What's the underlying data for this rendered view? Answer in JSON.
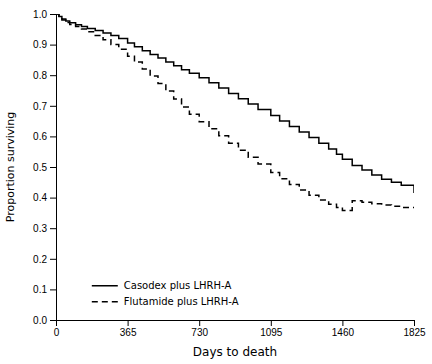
{
  "chart_data": {
    "type": "step",
    "xlabel": "Days to death",
    "ylabel": "Proportion surviving",
    "xlim": [
      0,
      1825
    ],
    "ylim": [
      0.0,
      1.0
    ],
    "xticks": [
      0,
      365,
      730,
      1095,
      1460,
      1825
    ],
    "yticks": [
      {
        "value": 0.0,
        "label": "0.0"
      },
      0.1,
      0.2,
      0.3,
      0.4,
      0.5,
      0.6,
      0.7,
      0.8,
      0.9,
      {
        "value": 1.0,
        "label": "1.0"
      }
    ],
    "x": [
      0,
      15,
      30,
      50,
      70,
      100,
      130,
      160,
      200,
      240,
      280,
      320,
      365,
      400,
      440,
      480,
      520,
      560,
      600,
      640,
      680,
      730,
      780,
      830,
      880,
      930,
      980,
      1030,
      1095,
      1140,
      1190,
      1240,
      1290,
      1340,
      1390,
      1430,
      1460,
      1510,
      1560,
      1610,
      1660,
      1710,
      1760,
      1825
    ],
    "series": [
      {
        "name": "Casodex plus LHRH-A",
        "color": "#000000",
        "line_style": "solid",
        "values": [
          1.0,
          0.992,
          0.984,
          0.977,
          0.971,
          0.965,
          0.959,
          0.953,
          0.946,
          0.938,
          0.93,
          0.92,
          0.905,
          0.893,
          0.88,
          0.868,
          0.856,
          0.843,
          0.831,
          0.818,
          0.806,
          0.792,
          0.775,
          0.758,
          0.74,
          0.723,
          0.706,
          0.688,
          0.668,
          0.65,
          0.632,
          0.614,
          0.596,
          0.578,
          0.559,
          0.542,
          0.525,
          0.505,
          0.49,
          0.474,
          0.46,
          0.45,
          0.44,
          0.415
        ]
      },
      {
        "name": "Flutamide plus LHRH-A",
        "color": "#000000",
        "line_style": "dashed",
        "values": [
          1.0,
          0.99,
          0.98,
          0.972,
          0.966,
          0.959,
          0.951,
          0.942,
          0.93,
          0.916,
          0.9,
          0.885,
          0.862,
          0.843,
          0.82,
          0.797,
          0.773,
          0.748,
          0.722,
          0.696,
          0.672,
          0.648,
          0.625,
          0.602,
          0.578,
          0.555,
          0.532,
          0.51,
          0.482,
          0.462,
          0.443,
          0.425,
          0.408,
          0.392,
          0.378,
          0.368,
          0.358,
          0.39,
          0.385,
          0.38,
          0.376,
          0.372,
          0.368,
          0.37
        ]
      }
    ],
    "legend": "lower left",
    "grid": false
  }
}
